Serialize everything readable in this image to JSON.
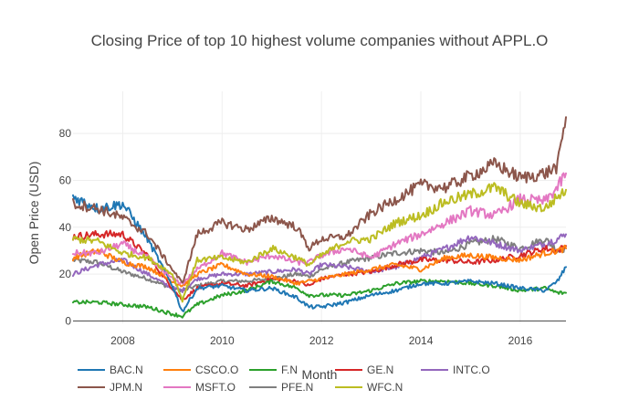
{
  "chart_data": {
    "type": "line",
    "title": "Closing Price of top 10 highest volume companies without APPL.O",
    "xlabel": "Month",
    "ylabel": "Open Price (USD)",
    "xlim": [
      2007.0,
      2016.92
    ],
    "ylim": [
      -1,
      98
    ],
    "x_ticks": [
      2008,
      2010,
      2012,
      2014,
      2016
    ],
    "x_tick_labels": [
      "2008",
      "2010",
      "2012",
      "2014",
      "2016"
    ],
    "y_ticks": [
      0,
      20,
      40,
      60,
      80
    ],
    "y_tick_labels": [
      "0",
      "20",
      "40",
      "60",
      "80"
    ],
    "grid": true,
    "legend_position": "bottom",
    "x": [
      2007.0,
      2007.5,
      2008.0,
      2008.5,
      2009.0,
      2009.2,
      2009.5,
      2010.0,
      2010.5,
      2011.0,
      2011.5,
      2011.75,
      2012.0,
      2012.5,
      2013.0,
      2013.5,
      2014.0,
      2014.5,
      2015.0,
      2015.5,
      2016.0,
      2016.5,
      2016.75,
      2016.92
    ],
    "series": [
      {
        "name": "BAC.N",
        "color": "#1f77b4",
        "values": [
          53,
          48,
          50,
          35,
          15,
          4,
          14,
          15,
          13,
          14,
          10,
          6,
          6,
          8,
          11,
          13,
          16,
          16,
          17,
          16,
          14,
          13,
          17,
          23
        ]
      },
      {
        "name": "CSCO.O",
        "color": "#ff7f0e",
        "values": [
          27,
          30,
          25,
          23,
          17,
          15,
          20,
          24,
          20,
          19,
          16,
          17,
          18,
          20,
          22,
          24,
          22,
          27,
          28,
          27,
          26,
          29,
          30,
          31
        ]
      },
      {
        "name": "F.N",
        "color": "#2ca02c",
        "values": [
          8,
          8,
          7,
          6,
          3,
          2,
          7,
          11,
          13,
          17,
          14,
          11,
          11,
          11,
          13,
          16,
          17,
          17,
          16,
          15,
          13,
          14,
          12,
          12
        ]
      },
      {
        "name": "GE.N",
        "color": "#d62728",
        "values": [
          36,
          37,
          37,
          28,
          14,
          9,
          14,
          16,
          15,
          18,
          17,
          15,
          18,
          20,
          21,
          24,
          26,
          26,
          25,
          26,
          28,
          31,
          30,
          32
        ]
      },
      {
        "name": "INTC.O",
        "color": "#9467bd",
        "values": [
          20,
          24,
          26,
          20,
          14,
          13,
          18,
          20,
          20,
          21,
          22,
          20,
          24,
          23,
          21,
          23,
          27,
          31,
          36,
          33,
          30,
          33,
          35,
          37
        ]
      },
      {
        "name": "JPM.N",
        "color": "#8c564b",
        "values": [
          50,
          48,
          44,
          37,
          22,
          16,
          37,
          42,
          39,
          44,
          40,
          31,
          35,
          36,
          46,
          52,
          58,
          57,
          62,
          67,
          61,
          63,
          66,
          87
        ]
      },
      {
        "name": "MSFT.O",
        "color": "#e377c2",
        "values": [
          29,
          29,
          33,
          27,
          18,
          16,
          22,
          29,
          25,
          28,
          25,
          25,
          28,
          31,
          27,
          33,
          37,
          42,
          47,
          45,
          52,
          51,
          57,
          63
        ]
      },
      {
        "name": "PFE.N",
        "color": "#7f7f7f",
        "values": [
          26,
          25,
          21,
          18,
          14,
          13,
          15,
          17,
          17,
          18,
          20,
          19,
          22,
          25,
          27,
          29,
          30,
          29,
          33,
          35,
          31,
          35,
          30,
          31
        ]
      },
      {
        "name": "WFC.N",
        "color": "#bcbd22",
        "values": [
          35,
          34,
          29,
          27,
          20,
          9,
          26,
          27,
          25,
          31,
          27,
          24,
          28,
          34,
          35,
          42,
          45,
          51,
          54,
          57,
          50,
          48,
          53,
          56
        ]
      }
    ]
  }
}
